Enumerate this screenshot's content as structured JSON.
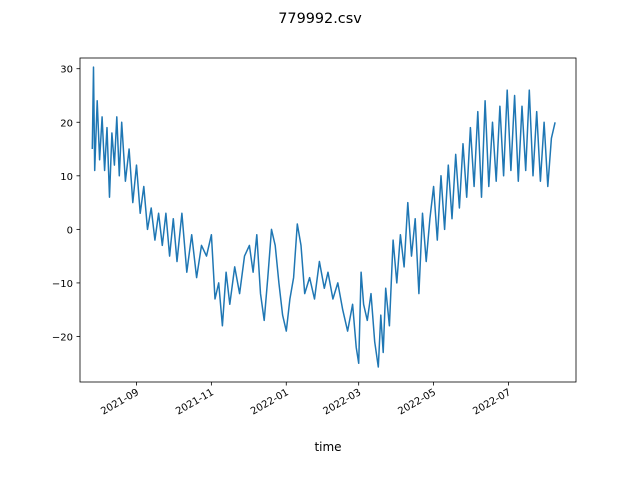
{
  "chart_data": {
    "type": "line",
    "title": "779992.csv",
    "xlabel": "time",
    "ylabel": "",
    "x_type": "date",
    "xlim": [
      "2021-07-17",
      "2022-08-25"
    ],
    "ylim": [
      -28.5,
      32.0
    ],
    "x_ticks": [
      "2021-09-01",
      "2021-11-01",
      "2022-01-01",
      "2022-03-01",
      "2022-05-01",
      "2022-07-01"
    ],
    "x_tick_labels": [
      "2021-09",
      "2021-11",
      "2022-01",
      "2022-03",
      "2022-05",
      "2022-07"
    ],
    "y_ticks": [
      -20,
      -10,
      0,
      10,
      20,
      30
    ],
    "y_tick_labels": [
      "−20",
      "−10",
      "0",
      "10",
      "20",
      "30"
    ],
    "grid": false,
    "legend": "none",
    "series": [
      {
        "color": "#1f77b4",
        "points": [
          [
            "2021-07-27",
            15
          ],
          [
            "2021-07-28",
            30.3
          ],
          [
            "2021-07-29",
            11
          ],
          [
            "2021-07-31",
            24
          ],
          [
            "2021-08-02",
            13
          ],
          [
            "2021-08-04",
            21
          ],
          [
            "2021-08-06",
            11
          ],
          [
            "2021-08-08",
            19
          ],
          [
            "2021-08-10",
            6
          ],
          [
            "2021-08-12",
            18
          ],
          [
            "2021-08-14",
            12
          ],
          [
            "2021-08-16",
            21
          ],
          [
            "2021-08-18",
            10
          ],
          [
            "2021-08-20",
            20
          ],
          [
            "2021-08-23",
            9
          ],
          [
            "2021-08-26",
            15
          ],
          [
            "2021-08-29",
            5
          ],
          [
            "2021-09-01",
            12
          ],
          [
            "2021-09-04",
            3
          ],
          [
            "2021-09-07",
            8
          ],
          [
            "2021-09-10",
            0
          ],
          [
            "2021-09-13",
            4
          ],
          [
            "2021-09-16",
            -2
          ],
          [
            "2021-09-19",
            3
          ],
          [
            "2021-09-22",
            -3
          ],
          [
            "2021-09-25",
            3
          ],
          [
            "2021-09-28",
            -5
          ],
          [
            "2021-10-01",
            2
          ],
          [
            "2021-10-04",
            -6
          ],
          [
            "2021-10-08",
            3
          ],
          [
            "2021-10-12",
            -8
          ],
          [
            "2021-10-16",
            -1
          ],
          [
            "2021-10-20",
            -9
          ],
          [
            "2021-10-24",
            -3
          ],
          [
            "2021-10-28",
            -5
          ],
          [
            "2021-11-01",
            -1
          ],
          [
            "2021-11-04",
            -13
          ],
          [
            "2021-11-07",
            -10
          ],
          [
            "2021-11-10",
            -18
          ],
          [
            "2021-11-13",
            -8
          ],
          [
            "2021-11-16",
            -14
          ],
          [
            "2021-11-20",
            -7
          ],
          [
            "2021-11-24",
            -12
          ],
          [
            "2021-11-28",
            -5
          ],
          [
            "2021-12-02",
            -3
          ],
          [
            "2021-12-05",
            -8
          ],
          [
            "2021-12-08",
            -1
          ],
          [
            "2021-12-11",
            -12
          ],
          [
            "2021-12-14",
            -17
          ],
          [
            "2021-12-17",
            -9
          ],
          [
            "2021-12-20",
            0
          ],
          [
            "2021-12-23",
            -3
          ],
          [
            "2021-12-26",
            -10
          ],
          [
            "2021-12-29",
            -16
          ],
          [
            "2022-01-01",
            -19
          ],
          [
            "2022-01-04",
            -13
          ],
          [
            "2022-01-07",
            -9
          ],
          [
            "2022-01-10",
            1
          ],
          [
            "2022-01-13",
            -3
          ],
          [
            "2022-01-16",
            -12
          ],
          [
            "2022-01-20",
            -9
          ],
          [
            "2022-01-24",
            -13
          ],
          [
            "2022-01-28",
            -6
          ],
          [
            "2022-02-01",
            -11
          ],
          [
            "2022-02-04",
            -8
          ],
          [
            "2022-02-08",
            -13
          ],
          [
            "2022-02-12",
            -10
          ],
          [
            "2022-02-16",
            -15
          ],
          [
            "2022-02-20",
            -19
          ],
          [
            "2022-02-24",
            -14
          ],
          [
            "2022-02-27",
            -22
          ],
          [
            "2022-03-01",
            -25
          ],
          [
            "2022-03-03",
            -8
          ],
          [
            "2022-03-05",
            -14
          ],
          [
            "2022-03-08",
            -17
          ],
          [
            "2022-03-11",
            -12
          ],
          [
            "2022-03-14",
            -21
          ],
          [
            "2022-03-17",
            -25.7
          ],
          [
            "2022-03-19",
            -16
          ],
          [
            "2022-03-21",
            -23
          ],
          [
            "2022-03-23",
            -11
          ],
          [
            "2022-03-26",
            -18
          ],
          [
            "2022-03-29",
            -2
          ],
          [
            "2022-04-01",
            -10
          ],
          [
            "2022-04-04",
            -1
          ],
          [
            "2022-04-07",
            -7
          ],
          [
            "2022-04-10",
            5
          ],
          [
            "2022-04-13",
            -5
          ],
          [
            "2022-04-16",
            2
          ],
          [
            "2022-04-19",
            -12
          ],
          [
            "2022-04-22",
            3
          ],
          [
            "2022-04-25",
            -6
          ],
          [
            "2022-04-28",
            2
          ],
          [
            "2022-05-01",
            8
          ],
          [
            "2022-05-04",
            -2
          ],
          [
            "2022-05-07",
            10
          ],
          [
            "2022-05-10",
            0
          ],
          [
            "2022-05-13",
            12
          ],
          [
            "2022-05-16",
            2
          ],
          [
            "2022-05-19",
            14
          ],
          [
            "2022-05-22",
            4
          ],
          [
            "2022-05-25",
            16
          ],
          [
            "2022-05-28",
            6
          ],
          [
            "2022-05-31",
            19
          ],
          [
            "2022-06-03",
            8
          ],
          [
            "2022-06-06",
            22
          ],
          [
            "2022-06-09",
            6
          ],
          [
            "2022-06-12",
            24
          ],
          [
            "2022-06-15",
            8
          ],
          [
            "2022-06-18",
            20
          ],
          [
            "2022-06-21",
            9
          ],
          [
            "2022-06-24",
            23
          ],
          [
            "2022-06-27",
            10
          ],
          [
            "2022-06-30",
            26
          ],
          [
            "2022-07-03",
            11
          ],
          [
            "2022-07-06",
            25
          ],
          [
            "2022-07-09",
            9
          ],
          [
            "2022-07-12",
            23
          ],
          [
            "2022-07-15",
            11
          ],
          [
            "2022-07-18",
            26
          ],
          [
            "2022-07-21",
            10
          ],
          [
            "2022-07-24",
            22
          ],
          [
            "2022-07-27",
            9
          ],
          [
            "2022-07-30",
            20
          ],
          [
            "2022-08-02",
            8
          ],
          [
            "2022-08-05",
            17
          ],
          [
            "2022-08-08",
            20
          ]
        ]
      }
    ]
  }
}
